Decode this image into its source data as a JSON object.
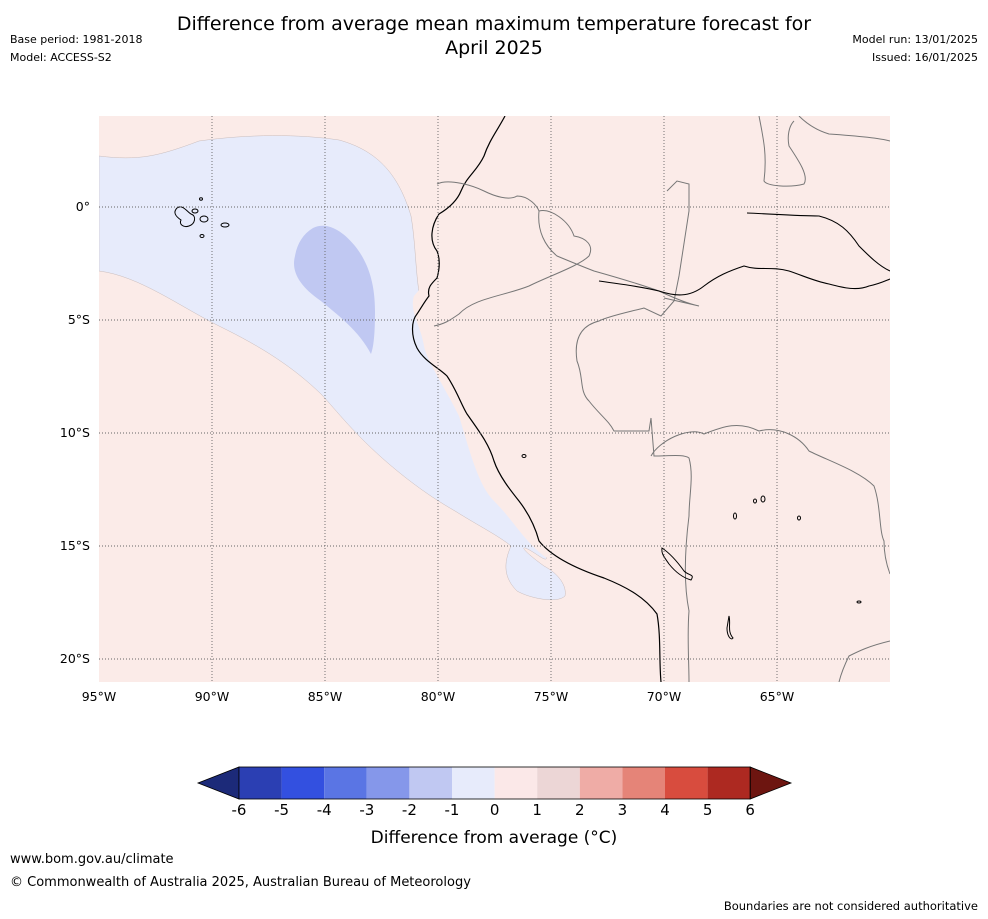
{
  "title_line1": "Difference from average mean maximum temperature forecast for",
  "title_line2": "April 2025",
  "base_period": "Base period: 1981-2018",
  "model": "Model: ACCESS-S2",
  "model_run": "Model run: 13/01/2025",
  "issued": "Issued: 16/01/2025",
  "map": {
    "lat_labels": [
      "0°",
      "5°S",
      "10°S",
      "15°S",
      "20°S"
    ],
    "lon_labels": [
      "95°W",
      "90°W",
      "85°W",
      "80°W",
      "75°W",
      "70°W",
      "65°W"
    ],
    "lon_range": [
      -95,
      -60
    ],
    "lat_range": [
      -21,
      4
    ],
    "colors": {
      "ocean_bg": "#fbebe8",
      "anomaly_0_to_-1": "#e7ebfb",
      "anomaly_-1_to_-2": "#c0c8f2",
      "coast": "#000000",
      "border": "#777777",
      "grid": "#666666"
    }
  },
  "colorbar": {
    "label": "Difference from average (°C)",
    "ticks": [
      "-6",
      "-5",
      "-4",
      "-3",
      "-2",
      "-1",
      "0",
      "1",
      "2",
      "3",
      "4",
      "5",
      "6"
    ],
    "colors": [
      "#1c2a79",
      "#2b3fb3",
      "#3350e0",
      "#5a75e4",
      "#8597ea",
      "#c0c8f2",
      "#e7ebfb",
      "#fbe8e8",
      "#ecd6d6",
      "#efaca6",
      "#e58478",
      "#d84c3e",
      "#ad2921",
      "#6d1510"
    ]
  },
  "footer": {
    "url": "www.bom.gov.au/climate",
    "copyright": "© Commonwealth of Australia 2025, Australian Bureau of Meteorology",
    "disclaimer": "Boundaries are not considered authoritative"
  }
}
